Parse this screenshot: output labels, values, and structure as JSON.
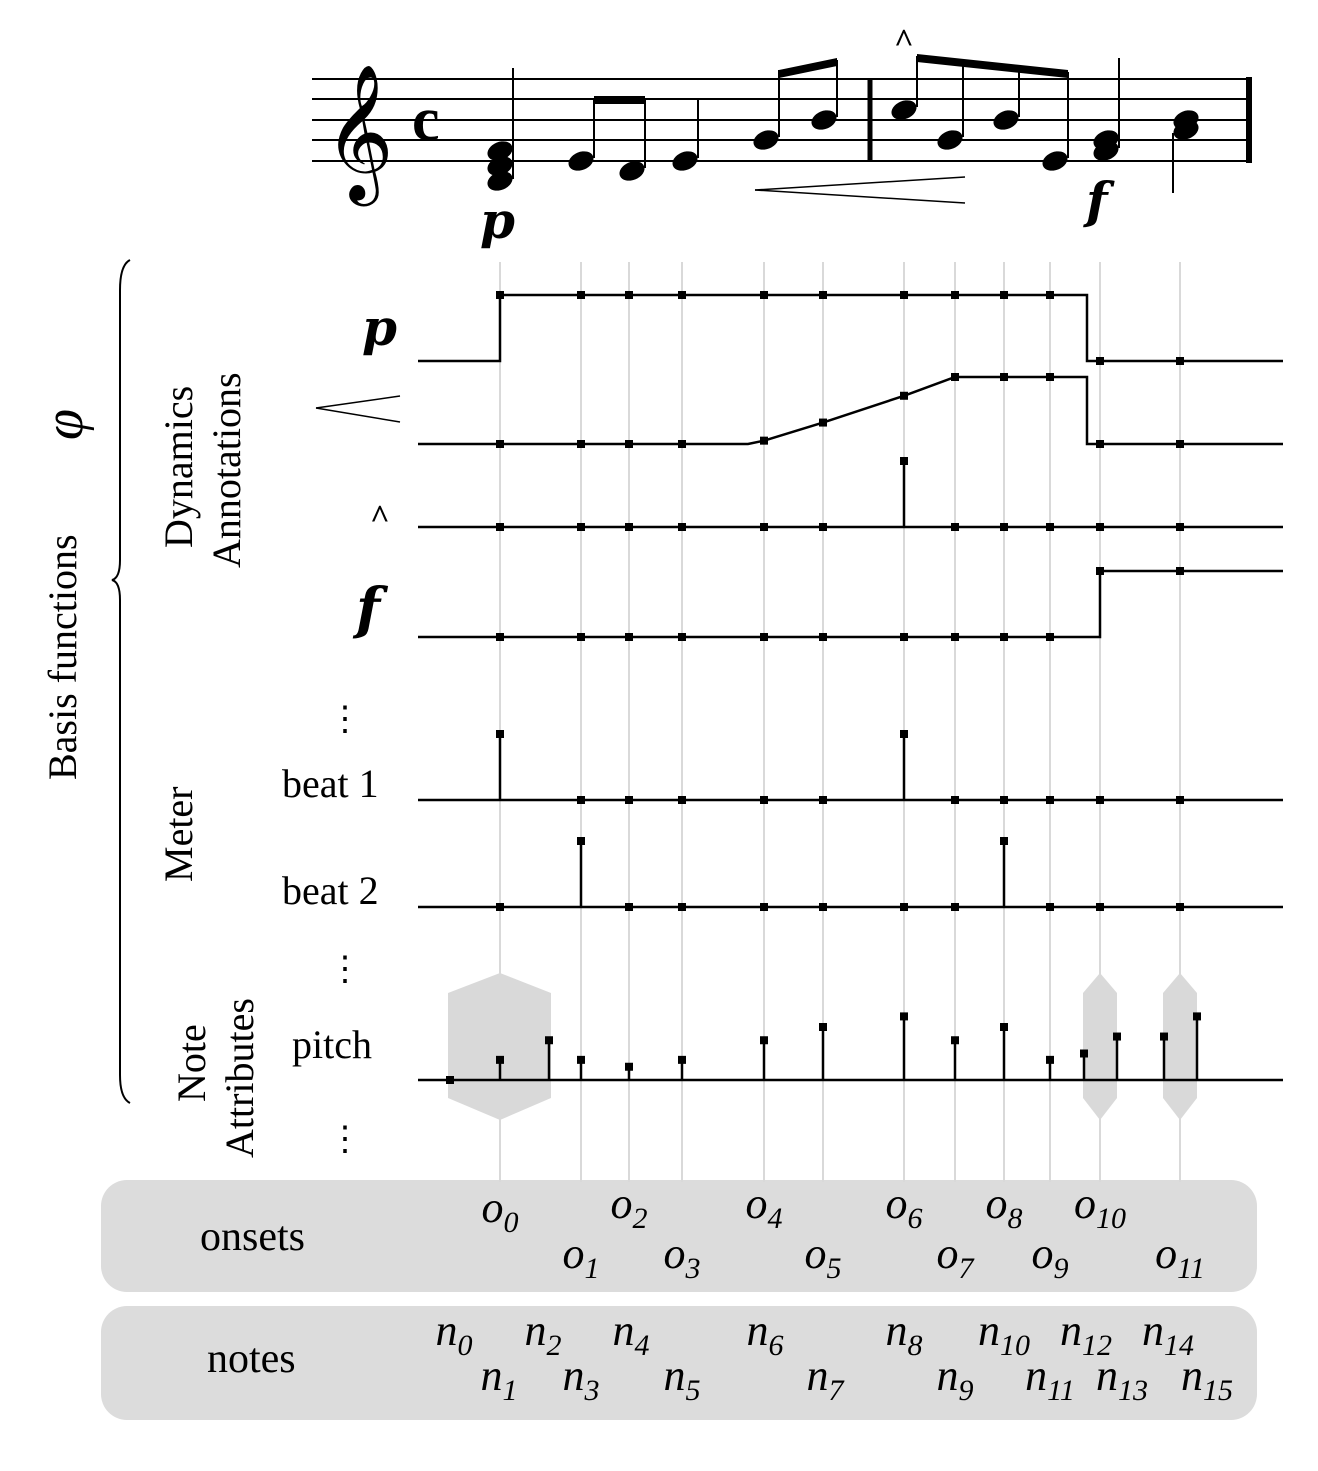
{
  "score": {
    "time_signature": "c",
    "dynamic_start": "p",
    "dynamic_end": "f",
    "accent": "^"
  },
  "bracket_label": "Basis functions",
  "phi": "φ",
  "groups": {
    "dynamics": [
      "Dynamics",
      "Annotations"
    ],
    "meter": "Meter",
    "note_attributes": [
      "Note",
      "Attributes"
    ]
  },
  "row_labels": {
    "p": "p",
    "accent": "^",
    "f": "f",
    "beat1": "beat 1",
    "beat2": "beat 2",
    "pitch": "pitch",
    "ellipsis": "⋮"
  },
  "onsets_label": "onsets",
  "notes_label": "notes",
  "onset_symbols": [
    {
      "base": "o",
      "sub": "0"
    },
    {
      "base": "o",
      "sub": "1"
    },
    {
      "base": "o",
      "sub": "2"
    },
    {
      "base": "o",
      "sub": "3"
    },
    {
      "base": "o",
      "sub": "4"
    },
    {
      "base": "o",
      "sub": "5"
    },
    {
      "base": "o",
      "sub": "6"
    },
    {
      "base": "o",
      "sub": "7"
    },
    {
      "base": "o",
      "sub": "8"
    },
    {
      "base": "o",
      "sub": "9"
    },
    {
      "base": "o",
      "sub": "10"
    },
    {
      "base": "o",
      "sub": "11"
    }
  ],
  "note_symbols": [
    {
      "base": "n",
      "sub": "0"
    },
    {
      "base": "n",
      "sub": "1"
    },
    {
      "base": "n",
      "sub": "2"
    },
    {
      "base": "n",
      "sub": "3"
    },
    {
      "base": "n",
      "sub": "4"
    },
    {
      "base": "n",
      "sub": "5"
    },
    {
      "base": "n",
      "sub": "6"
    },
    {
      "base": "n",
      "sub": "7"
    },
    {
      "base": "n",
      "sub": "8"
    },
    {
      "base": "n",
      "sub": "9"
    },
    {
      "base": "n",
      "sub": "10"
    },
    {
      "base": "n",
      "sub": "11"
    },
    {
      "base": "n",
      "sub": "12"
    },
    {
      "base": "n",
      "sub": "13"
    },
    {
      "base": "n",
      "sub": "14"
    },
    {
      "base": "n",
      "sub": "15"
    }
  ],
  "basis_values": {
    "p": [
      1,
      1,
      1,
      1,
      1,
      1,
      1,
      1,
      1,
      1,
      0,
      0
    ],
    "crescendo": [
      0,
      0,
      0,
      0,
      0,
      0.32,
      0.72,
      1,
      1,
      1,
      0,
      0
    ],
    "accent": [
      0,
      0,
      0,
      0,
      0,
      0,
      1,
      0,
      0,
      0,
      0,
      0
    ],
    "f": [
      0,
      0,
      0,
      0,
      0,
      0,
      0,
      0,
      0,
      0,
      1,
      1
    ],
    "beat1": [
      1,
      0,
      0,
      0,
      0,
      0,
      1,
      0,
      0,
      0,
      0,
      0
    ],
    "beat2": [
      0,
      1,
      0,
      0,
      0,
      0,
      0,
      0,
      1,
      0,
      0,
      0
    ],
    "pitch": [
      0,
      0.38,
      0.75,
      0.38,
      0.25,
      0.38,
      0.75,
      1,
      1.2,
      0.75,
      1,
      0.38,
      0.5,
      0.82,
      0.82,
      1.2
    ]
  },
  "colors": {
    "line": "#000000",
    "grid": "#d9d9d9",
    "panel": "#dcdcdc",
    "shade": "#d9d9d9"
  }
}
